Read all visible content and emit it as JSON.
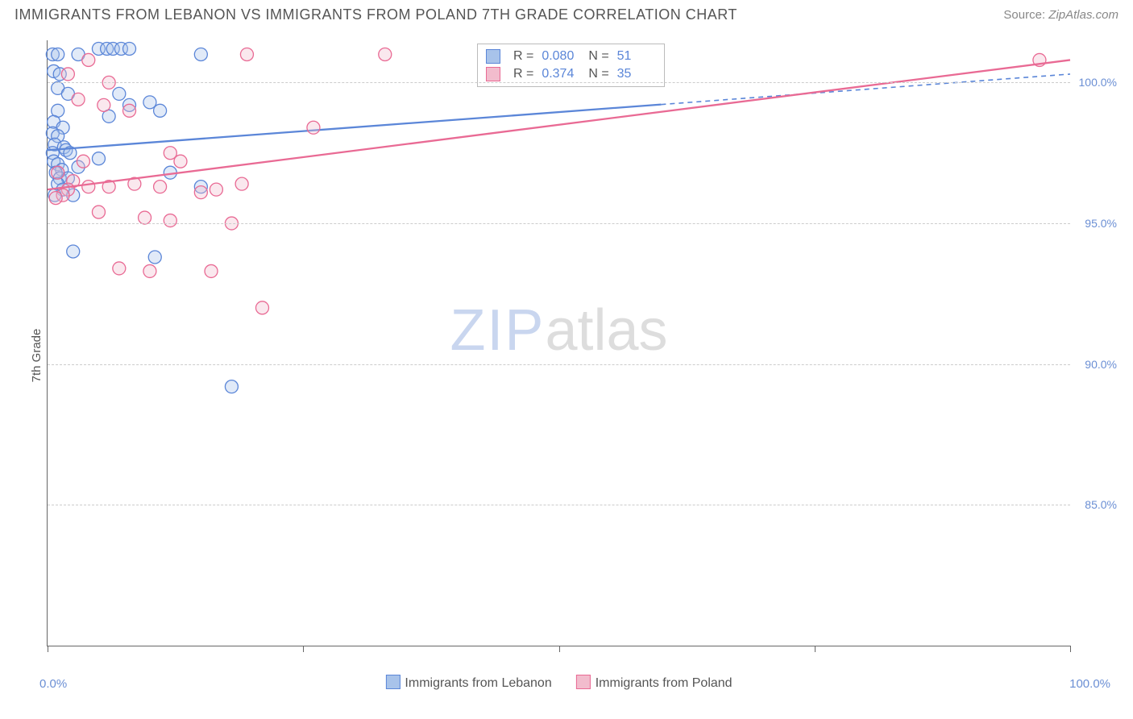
{
  "header": {
    "title": "IMMIGRANTS FROM LEBANON VS IMMIGRANTS FROM POLAND 7TH GRADE CORRELATION CHART",
    "source_prefix": "Source: ",
    "source_name": "ZipAtlas.com"
  },
  "chart": {
    "type": "scatter",
    "ylabel": "7th Grade",
    "background_color": "#ffffff",
    "grid_color": "#cccccc",
    "axis_color": "#666666",
    "xlim": [
      0,
      100
    ],
    "ylim": [
      80,
      101.5
    ],
    "xtick_positions": [
      0,
      25,
      50,
      75,
      100
    ],
    "yticks": [
      85.0,
      90.0,
      95.0,
      100.0
    ],
    "ytick_labels": [
      "85.0%",
      "90.0%",
      "95.0%",
      "100.0%"
    ],
    "xaxis_min_label": "0.0%",
    "xaxis_max_label": "100.0%",
    "marker_radius": 8,
    "marker_fill_opacity": 0.35,
    "marker_stroke_width": 1.3,
    "line_width": 2.3,
    "watermark": {
      "zip": "ZIP",
      "atlas": "atlas"
    },
    "series": [
      {
        "name": "Immigrants from Lebanon",
        "color_fill": "#a8c3ea",
        "color_stroke": "#5b86d8",
        "legend": {
          "R": "0.080",
          "N": "51"
        },
        "regression": {
          "x1": 0,
          "y1": 97.6,
          "x2": 100,
          "y2": 100.3,
          "dash_after_x": 60
        },
        "points": [
          {
            "x": 0.5,
            "y": 101.0
          },
          {
            "x": 1.0,
            "y": 101.0
          },
          {
            "x": 3.0,
            "y": 101.0
          },
          {
            "x": 5.0,
            "y": 101.2
          },
          {
            "x": 5.8,
            "y": 101.2
          },
          {
            "x": 6.4,
            "y": 101.2
          },
          {
            "x": 7.2,
            "y": 101.2
          },
          {
            "x": 8.0,
            "y": 101.2
          },
          {
            "x": 15.0,
            "y": 101.0
          },
          {
            "x": 0.6,
            "y": 100.4
          },
          {
            "x": 1.2,
            "y": 100.3
          },
          {
            "x": 1.0,
            "y": 99.8
          },
          {
            "x": 2.0,
            "y": 99.6
          },
          {
            "x": 1.0,
            "y": 99.0
          },
          {
            "x": 0.6,
            "y": 98.6
          },
          {
            "x": 1.5,
            "y": 98.4
          },
          {
            "x": 0.5,
            "y": 98.2
          },
          {
            "x": 1.0,
            "y": 98.1
          },
          {
            "x": 0.7,
            "y": 97.8
          },
          {
            "x": 1.6,
            "y": 97.7
          },
          {
            "x": 1.8,
            "y": 97.6
          },
          {
            "x": 0.5,
            "y": 97.5
          },
          {
            "x": 2.2,
            "y": 97.5
          },
          {
            "x": 0.6,
            "y": 97.2
          },
          {
            "x": 1.0,
            "y": 97.1
          },
          {
            "x": 1.4,
            "y": 96.9
          },
          {
            "x": 0.8,
            "y": 96.8
          },
          {
            "x": 1.2,
            "y": 96.6
          },
          {
            "x": 2.0,
            "y": 96.6
          },
          {
            "x": 1.0,
            "y": 96.4
          },
          {
            "x": 1.5,
            "y": 96.2
          },
          {
            "x": 0.7,
            "y": 96.0
          },
          {
            "x": 2.5,
            "y": 96.0
          },
          {
            "x": 3.0,
            "y": 97.0
          },
          {
            "x": 5.0,
            "y": 97.3
          },
          {
            "x": 6.0,
            "y": 98.8
          },
          {
            "x": 7.0,
            "y": 99.6
          },
          {
            "x": 8.0,
            "y": 99.2
          },
          {
            "x": 10.0,
            "y": 99.3
          },
          {
            "x": 11.0,
            "y": 99.0
          },
          {
            "x": 12.0,
            "y": 96.8
          },
          {
            "x": 15.0,
            "y": 96.3
          },
          {
            "x": 2.5,
            "y": 94.0
          },
          {
            "x": 10.5,
            "y": 93.8
          },
          {
            "x": 18.0,
            "y": 89.2
          }
        ]
      },
      {
        "name": "Immigrants from Poland",
        "color_fill": "#f2bccd",
        "color_stroke": "#e96a94",
        "legend": {
          "R": "0.374",
          "N": "35"
        },
        "regression": {
          "x1": 0,
          "y1": 96.2,
          "x2": 100,
          "y2": 100.8,
          "dash_after_x": 100
        },
        "points": [
          {
            "x": 2.0,
            "y": 100.3
          },
          {
            "x": 4.0,
            "y": 100.8
          },
          {
            "x": 6.0,
            "y": 100.0
          },
          {
            "x": 19.5,
            "y": 101.0
          },
          {
            "x": 33.0,
            "y": 101.0
          },
          {
            "x": 3.0,
            "y": 99.4
          },
          {
            "x": 5.5,
            "y": 99.2
          },
          {
            "x": 8.0,
            "y": 99.0
          },
          {
            "x": 12.0,
            "y": 97.5
          },
          {
            "x": 13.0,
            "y": 97.2
          },
          {
            "x": 26.0,
            "y": 98.4
          },
          {
            "x": 3.5,
            "y": 97.2
          },
          {
            "x": 1.0,
            "y": 96.8
          },
          {
            "x": 2.5,
            "y": 96.5
          },
          {
            "x": 4.0,
            "y": 96.3
          },
          {
            "x": 2.0,
            "y": 96.2
          },
          {
            "x": 1.5,
            "y": 96.0
          },
          {
            "x": 0.8,
            "y": 95.9
          },
          {
            "x": 6.0,
            "y": 96.3
          },
          {
            "x": 8.5,
            "y": 96.4
          },
          {
            "x": 11.0,
            "y": 96.3
          },
          {
            "x": 15.0,
            "y": 96.1
          },
          {
            "x": 16.5,
            "y": 96.2
          },
          {
            "x": 19.0,
            "y": 96.4
          },
          {
            "x": 5.0,
            "y": 95.4
          },
          {
            "x": 9.5,
            "y": 95.2
          },
          {
            "x": 12.0,
            "y": 95.1
          },
          {
            "x": 18.0,
            "y": 95.0
          },
          {
            "x": 7.0,
            "y": 93.4
          },
          {
            "x": 10.0,
            "y": 93.3
          },
          {
            "x": 16.0,
            "y": 93.3
          },
          {
            "x": 21.0,
            "y": 92.0
          },
          {
            "x": 97.0,
            "y": 100.8
          }
        ]
      }
    ],
    "bottom_legend": [
      {
        "label": "Immigrants from Lebanon",
        "fill": "#a8c3ea",
        "stroke": "#5b86d8"
      },
      {
        "label": "Immigrants from Poland",
        "fill": "#f2bccd",
        "stroke": "#e96a94"
      }
    ]
  }
}
